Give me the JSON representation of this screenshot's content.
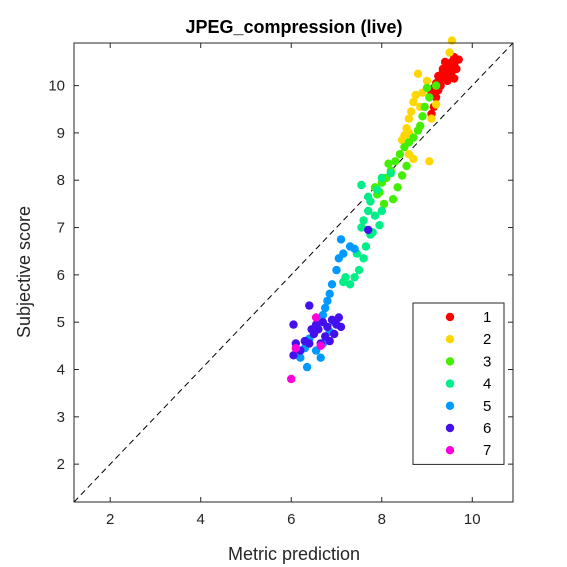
{
  "chart_data": {
    "type": "scatter",
    "title": "JPEG_compression (live)",
    "xlabel": "Metric prediction",
    "ylabel": "Subjective score",
    "xlim": [
      1.2,
      10.9
    ],
    "ylim": [
      1.2,
      10.9
    ],
    "xticks": [
      2,
      4,
      6,
      8,
      10
    ],
    "yticks": [
      2,
      3,
      4,
      5,
      6,
      7,
      8,
      9,
      10
    ],
    "grid": false,
    "reference_line": {
      "style": "dashed",
      "color": "#000000",
      "from": [
        1.2,
        1.2
      ],
      "to": [
        10.9,
        10.9
      ]
    },
    "legend_position": "bottom-right",
    "series": [
      {
        "name": "1",
        "color": "#ff0000",
        "points": [
          [
            9.55,
            10.5
          ],
          [
            9.6,
            10.45
          ],
          [
            9.65,
            10.35
          ],
          [
            9.7,
            10.55
          ],
          [
            9.5,
            10.3
          ],
          [
            9.45,
            10.4
          ],
          [
            9.4,
            10.25
          ],
          [
            9.35,
            10.35
          ],
          [
            9.3,
            10.15
          ],
          [
            9.25,
            10.2
          ],
          [
            9.2,
            10.05
          ],
          [
            9.15,
            9.95
          ],
          [
            9.5,
            10.2
          ],
          [
            9.4,
            10.5
          ],
          [
            9.6,
            10.15
          ],
          [
            9.3,
            10.0
          ],
          [
            9.2,
            9.75
          ],
          [
            9.15,
            9.55
          ],
          [
            9.1,
            9.4
          ],
          [
            9.35,
            10.3
          ],
          [
            9.45,
            10.1
          ],
          [
            9.55,
            10.3
          ],
          [
            9.25,
            9.9
          ],
          [
            9.6,
            10.6
          ],
          [
            9.1,
            9.85
          ]
        ]
      },
      {
        "name": "2",
        "color": "#ffd700",
        "points": [
          [
            9.55,
            10.95
          ],
          [
            9.5,
            10.7
          ],
          [
            8.8,
            10.25
          ],
          [
            9.0,
            10.1
          ],
          [
            8.9,
            9.85
          ],
          [
            8.7,
            9.65
          ],
          [
            8.65,
            9.45
          ],
          [
            8.6,
            9.3
          ],
          [
            8.55,
            9.1
          ],
          [
            8.5,
            8.95
          ],
          [
            8.45,
            8.85
          ],
          [
            8.5,
            8.9
          ],
          [
            8.6,
            8.55
          ],
          [
            8.7,
            8.45
          ],
          [
            9.05,
            8.4
          ],
          [
            8.75,
            9.8
          ],
          [
            9.2,
            9.6
          ],
          [
            9.1,
            9.3
          ],
          [
            8.85,
            9.55
          ],
          [
            8.6,
            9.0
          ]
        ]
      },
      {
        "name": "3",
        "color": "#44ee00",
        "points": [
          [
            9.0,
            9.95
          ],
          [
            9.2,
            10.0
          ],
          [
            9.05,
            9.75
          ],
          [
            8.95,
            9.55
          ],
          [
            8.9,
            9.35
          ],
          [
            8.85,
            9.15
          ],
          [
            8.8,
            9.05
          ],
          [
            8.7,
            8.9
          ],
          [
            8.6,
            8.8
          ],
          [
            8.5,
            8.7
          ],
          [
            8.4,
            8.55
          ],
          [
            8.3,
            8.4
          ],
          [
            8.2,
            8.2
          ],
          [
            8.1,
            8.05
          ],
          [
            8.0,
            7.95
          ],
          [
            7.95,
            7.75
          ],
          [
            7.9,
            7.7
          ],
          [
            8.35,
            7.85
          ],
          [
            8.25,
            7.6
          ],
          [
            8.45,
            8.1
          ],
          [
            8.15,
            8.35
          ],
          [
            8.55,
            8.3
          ],
          [
            7.85,
            7.85
          ],
          [
            8.05,
            7.5
          ]
        ]
      },
      {
        "name": "4",
        "color": "#00ee88",
        "points": [
          [
            8.2,
            8.15
          ],
          [
            8.0,
            8.05
          ],
          [
            7.9,
            7.8
          ],
          [
            7.75,
            7.55
          ],
          [
            7.7,
            7.35
          ],
          [
            7.6,
            7.15
          ],
          [
            7.55,
            7.0
          ],
          [
            7.85,
            7.25
          ],
          [
            7.95,
            7.05
          ],
          [
            7.75,
            6.85
          ],
          [
            7.65,
            6.6
          ],
          [
            7.6,
            6.35
          ],
          [
            7.5,
            6.1
          ],
          [
            7.4,
            5.95
          ],
          [
            7.3,
            5.8
          ],
          [
            7.2,
            5.95
          ],
          [
            7.15,
            5.85
          ],
          [
            7.45,
            6.45
          ],
          [
            7.8,
            6.9
          ],
          [
            8.0,
            7.35
          ],
          [
            7.7,
            7.65
          ],
          [
            7.55,
            7.9
          ]
        ]
      },
      {
        "name": "5",
        "color": "#0099ff",
        "points": [
          [
            7.3,
            6.6
          ],
          [
            7.15,
            6.45
          ],
          [
            7.05,
            6.35
          ],
          [
            7.0,
            6.1
          ],
          [
            6.9,
            5.8
          ],
          [
            6.85,
            5.6
          ],
          [
            6.8,
            5.45
          ],
          [
            6.75,
            5.3
          ],
          [
            6.7,
            5.15
          ],
          [
            6.6,
            5.0
          ],
          [
            6.5,
            4.85
          ],
          [
            6.4,
            4.65
          ],
          [
            6.3,
            4.45
          ],
          [
            6.2,
            4.25
          ],
          [
            6.35,
            4.05
          ],
          [
            6.65,
            4.25
          ],
          [
            6.7,
            4.55
          ],
          [
            6.85,
            4.8
          ],
          [
            7.4,
            6.55
          ],
          [
            7.1,
            6.75
          ],
          [
            6.95,
            5.0
          ],
          [
            6.55,
            4.4
          ]
        ]
      },
      {
        "name": "6",
        "color": "#4411ee",
        "points": [
          [
            7.7,
            6.95
          ],
          [
            6.4,
            5.35
          ],
          [
            6.05,
            4.95
          ],
          [
            6.1,
            4.55
          ],
          [
            6.05,
            4.3
          ],
          [
            6.2,
            4.4
          ],
          [
            6.3,
            4.6
          ],
          [
            6.4,
            4.55
          ],
          [
            6.5,
            4.75
          ],
          [
            6.6,
            4.85
          ],
          [
            6.7,
            5.0
          ],
          [
            6.8,
            4.9
          ],
          [
            6.9,
            5.05
          ],
          [
            7.0,
            4.95
          ],
          [
            7.1,
            4.9
          ],
          [
            6.75,
            4.7
          ],
          [
            6.65,
            4.55
          ],
          [
            6.55,
            4.95
          ],
          [
            6.45,
            4.85
          ],
          [
            6.85,
            4.6
          ],
          [
            6.95,
            4.75
          ],
          [
            7.05,
            5.1
          ]
        ]
      },
      {
        "name": "7",
        "color": "#ff00dd",
        "points": [
          [
            6.0,
            3.8
          ],
          [
            6.65,
            4.5
          ],
          [
            6.55,
            5.1
          ],
          [
            6.1,
            4.45
          ]
        ]
      }
    ]
  }
}
